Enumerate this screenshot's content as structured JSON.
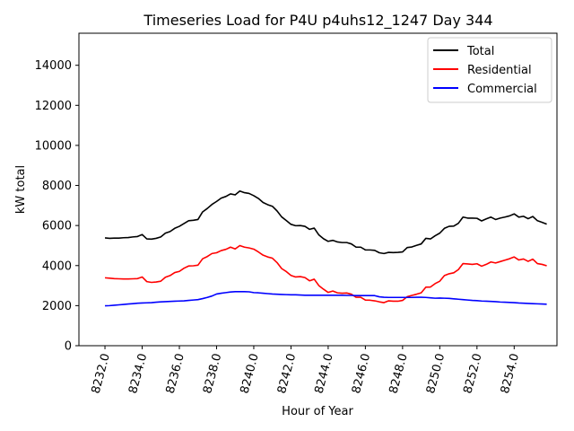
{
  "chart_data": {
    "type": "line",
    "title": "Timeseries Load for P4U p4uhs12_1247  Day 344",
    "xlabel": "Hour of Year",
    "ylabel": "kW total",
    "xlim": [
      8230.6,
      8256.3
    ],
    "ylim": [
      0,
      15600
    ],
    "x_ticks": [
      8232,
      8234,
      8236,
      8238,
      8240,
      8242,
      8244,
      8246,
      8248,
      8250,
      8252,
      8254
    ],
    "x_tick_labels": [
      "8232.0",
      "8234.0",
      "8236.0",
      "8238.0",
      "8240.0",
      "8242.0",
      "8244.0",
      "8246.0",
      "8248.0",
      "8250.0",
      "8252.0",
      "8254.0"
    ],
    "y_ticks": [
      0,
      2000,
      4000,
      6000,
      8000,
      10000,
      12000,
      14000
    ],
    "y_tick_labels": [
      "0",
      "2000",
      "4000",
      "6000",
      "8000",
      "10000",
      "12000",
      "14000"
    ],
    "legend_position": "top-right",
    "series": [
      {
        "name": "Total",
        "color": "#000000",
        "x": [
          8232,
          8232.25,
          8232.5,
          8232.75,
          8233,
          8233.25,
          8233.5,
          8233.75,
          8234,
          8234.25,
          8234.5,
          8234.75,
          8235,
          8235.25,
          8235.5,
          8235.75,
          8236,
          8236.25,
          8236.5,
          8236.75,
          8237,
          8237.25,
          8237.5,
          8237.75,
          8238,
          8238.25,
          8238.5,
          8238.75,
          8239,
          8239.25,
          8239.5,
          8239.75,
          8240,
          8240.25,
          8240.5,
          8240.75,
          8241,
          8241.25,
          8241.5,
          8241.75,
          8242,
          8242.25,
          8242.5,
          8242.75,
          8243,
          8243.25,
          8243.5,
          8243.75,
          8244,
          8244.25,
          8244.5,
          8244.75,
          8245,
          8245.25,
          8245.5,
          8245.75,
          8246,
          8246.25,
          8246.5,
          8246.75,
          8247,
          8247.25,
          8247.5,
          8247.75,
          8248,
          8248.25,
          8248.5,
          8248.75,
          8249,
          8249.25,
          8249.5,
          8249.75,
          8250,
          8250.25,
          8250.5,
          8250.75,
          8251,
          8251.25,
          8251.5,
          8251.75,
          8252,
          8252.25,
          8252.5,
          8252.75,
          8253,
          8253.25,
          8253.5,
          8253.75,
          8254,
          8254.25,
          8254.5,
          8254.75,
          8255,
          8255.25,
          8255.5,
          8255.75
        ],
        "values": [
          5380,
          5360,
          5370,
          5370,
          5390,
          5400,
          5430,
          5450,
          5550,
          5330,
          5320,
          5360,
          5430,
          5620,
          5700,
          5860,
          5960,
          6100,
          6240,
          6260,
          6300,
          6680,
          6850,
          7050,
          7200,
          7370,
          7450,
          7580,
          7530,
          7720,
          7640,
          7600,
          7490,
          7350,
          7150,
          7040,
          6960,
          6730,
          6430,
          6250,
          6060,
          5990,
          6000,
          5960,
          5810,
          5870,
          5530,
          5340,
          5210,
          5260,
          5180,
          5150,
          5150,
          5080,
          4920,
          4920,
          4780,
          4780,
          4760,
          4640,
          4600,
          4660,
          4650,
          4660,
          4680,
          4900,
          4930,
          5010,
          5080,
          5360,
          5330,
          5490,
          5620,
          5860,
          5960,
          5970,
          6110,
          6420,
          6370,
          6370,
          6360,
          6230,
          6330,
          6420,
          6300,
          6370,
          6420,
          6480,
          6580,
          6420,
          6460,
          6340,
          6450,
          6240,
          6160,
          6070
        ]
      },
      {
        "name": "Residential",
        "color": "#ff0000",
        "x": [
          8232,
          8232.25,
          8232.5,
          8232.75,
          8233,
          8233.25,
          8233.5,
          8233.75,
          8234,
          8234.25,
          8234.5,
          8234.75,
          8235,
          8235.25,
          8235.5,
          8235.75,
          8236,
          8236.25,
          8236.5,
          8236.75,
          8237,
          8237.25,
          8237.5,
          8237.75,
          8238,
          8238.25,
          8238.5,
          8238.75,
          8239,
          8239.25,
          8239.5,
          8239.75,
          8240,
          8240.25,
          8240.5,
          8240.75,
          8241,
          8241.25,
          8241.5,
          8241.75,
          8242,
          8242.25,
          8242.5,
          8242.75,
          8243,
          8243.25,
          8243.5,
          8243.75,
          8244,
          8244.25,
          8244.5,
          8244.75,
          8245,
          8245.25,
          8245.5,
          8245.75,
          8246,
          8246.25,
          8246.5,
          8246.75,
          8247,
          8247.25,
          8247.5,
          8247.75,
          8248,
          8248.25,
          8248.5,
          8248.75,
          8249,
          8249.25,
          8249.5,
          8249.75,
          8250,
          8250.25,
          8250.5,
          8250.75,
          8251,
          8251.25,
          8251.5,
          8251.75,
          8252,
          8252.25,
          8252.5,
          8252.75,
          8253,
          8253.25,
          8253.5,
          8253.75,
          8254,
          8254.25,
          8254.5,
          8254.75,
          8255,
          8255.25,
          8255.5,
          8255.75
        ],
        "values": [
          3390,
          3370,
          3350,
          3340,
          3330,
          3330,
          3340,
          3350,
          3430,
          3200,
          3160,
          3180,
          3220,
          3420,
          3500,
          3650,
          3710,
          3870,
          3980,
          3990,
          4020,
          4340,
          4450,
          4600,
          4640,
          4750,
          4810,
          4920,
          4830,
          5000,
          4920,
          4880,
          4820,
          4680,
          4520,
          4430,
          4370,
          4150,
          3850,
          3700,
          3510,
          3430,
          3450,
          3400,
          3240,
          3320,
          3000,
          2820,
          2660,
          2730,
          2640,
          2620,
          2630,
          2570,
          2420,
          2420,
          2280,
          2270,
          2240,
          2190,
          2150,
          2240,
          2220,
          2220,
          2260,
          2450,
          2510,
          2570,
          2640,
          2920,
          2930,
          3100,
          3220,
          3500,
          3590,
          3640,
          3800,
          4100,
          4080,
          4060,
          4090,
          3970,
          4060,
          4180,
          4130,
          4200,
          4270,
          4340,
          4430,
          4280,
          4330,
          4210,
          4320,
          4100,
          4060,
          3990
        ]
      },
      {
        "name": "Commercial",
        "color": "#0000ff",
        "x": [
          8232,
          8232.25,
          8232.5,
          8232.75,
          8233,
          8233.25,
          8233.5,
          8233.75,
          8234,
          8234.25,
          8234.5,
          8234.75,
          8235,
          8235.25,
          8235.5,
          8235.75,
          8236,
          8236.25,
          8236.5,
          8236.75,
          8237,
          8237.25,
          8237.5,
          8237.75,
          8238,
          8238.25,
          8238.5,
          8238.75,
          8239,
          8239.25,
          8239.5,
          8239.75,
          8240,
          8240.25,
          8240.5,
          8240.75,
          8241,
          8241.25,
          8241.5,
          8241.75,
          8242,
          8242.25,
          8242.5,
          8242.75,
          8243,
          8243.25,
          8243.5,
          8243.75,
          8244,
          8244.25,
          8244.5,
          8244.75,
          8245,
          8245.25,
          8245.5,
          8245.75,
          8246,
          8246.25,
          8246.5,
          8246.75,
          8247,
          8247.25,
          8247.5,
          8247.75,
          8248,
          8248.25,
          8248.5,
          8248.75,
          8249,
          8249.25,
          8249.5,
          8249.75,
          8250,
          8250.25,
          8250.5,
          8250.75,
          8251,
          8251.25,
          8251.5,
          8251.75,
          8252,
          8252.25,
          8252.5,
          8252.75,
          8253,
          8253.25,
          8253.5,
          8253.75,
          8254,
          8254.25,
          8254.5,
          8254.75,
          8255,
          8255.25,
          8255.5,
          8255.75
        ],
        "values": [
          1990,
          2000,
          2020,
          2040,
          2060,
          2080,
          2100,
          2120,
          2130,
          2140,
          2150,
          2170,
          2190,
          2200,
          2210,
          2220,
          2230,
          2240,
          2260,
          2280,
          2300,
          2350,
          2410,
          2480,
          2580,
          2620,
          2650,
          2680,
          2700,
          2700,
          2700,
          2690,
          2650,
          2640,
          2620,
          2600,
          2580,
          2570,
          2560,
          2550,
          2540,
          2540,
          2530,
          2520,
          2520,
          2520,
          2520,
          2520,
          2520,
          2520,
          2520,
          2520,
          2510,
          2510,
          2500,
          2500,
          2500,
          2500,
          2500,
          2440,
          2420,
          2410,
          2410,
          2410,
          2410,
          2410,
          2410,
          2420,
          2420,
          2410,
          2390,
          2370,
          2380,
          2370,
          2360,
          2340,
          2320,
          2300,
          2280,
          2260,
          2250,
          2230,
          2220,
          2210,
          2200,
          2180,
          2170,
          2160,
          2150,
          2130,
          2120,
          2110,
          2100,
          2090,
          2080,
          2070
        ]
      }
    ]
  }
}
